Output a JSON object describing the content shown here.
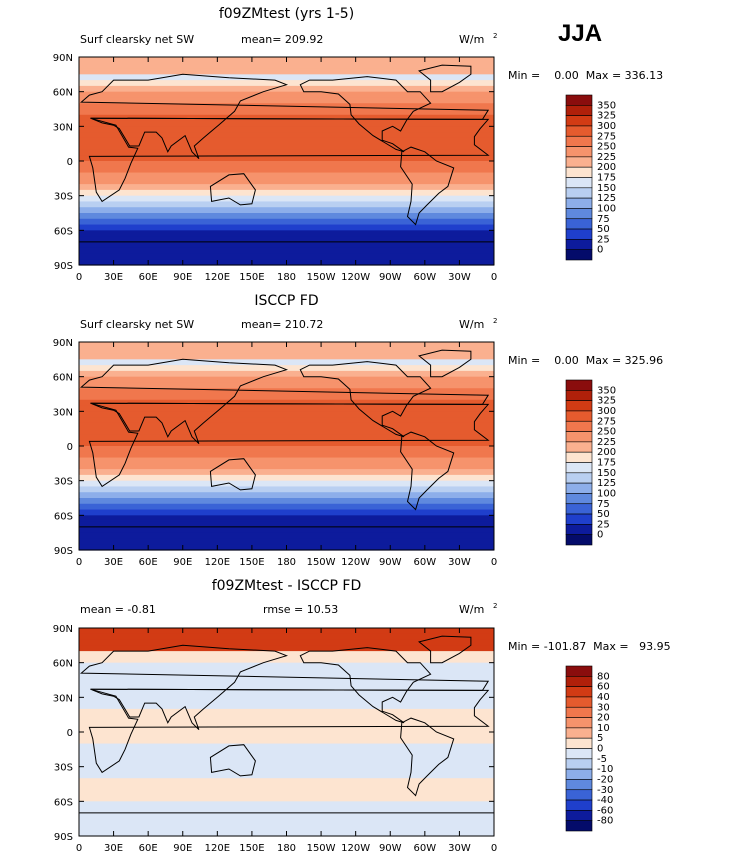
{
  "season": "JJA",
  "chart_data": [
    {
      "type": "heatmap",
      "title": "f09ZMtest (yrs 1-5)",
      "left_label": "Surf clearsky net SW",
      "stat1": "mean= 209.92",
      "stat2": "",
      "units": "W/m",
      "units_exp": "2",
      "minmax": "Min =    0.00  Max = 336.13",
      "min": 0.0,
      "max": 336.13,
      "mean": 209.92,
      "colorbar_levels": [
        "350",
        "325",
        "300",
        "275",
        "250",
        "225",
        "200",
        "175",
        "150",
        "125",
        "100",
        "75",
        "50",
        "25",
        "0"
      ],
      "colorbar_colors": [
        "#8a0d0d",
        "#b0200a",
        "#d23b14",
        "#e55b2e",
        "#f0774d",
        "#f6936c",
        "#fab08f",
        "#fde4d0",
        "#dbe6f6",
        "#b9cff1",
        "#8daeea",
        "#5f89de",
        "#3a63d6",
        "#1f3fcc",
        "#0d1b9c",
        "#040b6a"
      ],
      "xticks": [
        "0",
        "30E",
        "60E",
        "90E",
        "120E",
        "150E",
        "180",
        "150W",
        "120W",
        "90W",
        "60W",
        "30W",
        "0"
      ],
      "yticks": [
        "90N",
        "60N",
        "30N",
        "0",
        "30S",
        "60S",
        "90S"
      ]
    },
    {
      "type": "heatmap",
      "title": "ISCCP FD",
      "left_label": "Surf clearsky net SW",
      "stat1": "mean= 210.72",
      "stat2": "",
      "units": "W/m",
      "units_exp": "2",
      "minmax": "Min =    0.00  Max = 325.96",
      "min": 0.0,
      "max": 325.96,
      "mean": 210.72,
      "colorbar_levels": [
        "350",
        "325",
        "300",
        "275",
        "250",
        "225",
        "200",
        "175",
        "150",
        "125",
        "100",
        "75",
        "50",
        "25",
        "0"
      ],
      "colorbar_colors": [
        "#8a0d0d",
        "#b0200a",
        "#d23b14",
        "#e55b2e",
        "#f0774d",
        "#f6936c",
        "#fab08f",
        "#fde4d0",
        "#dbe6f6",
        "#b9cff1",
        "#8daeea",
        "#5f89de",
        "#3a63d6",
        "#1f3fcc",
        "#0d1b9c",
        "#040b6a"
      ],
      "xticks": [
        "0",
        "30E",
        "60E",
        "90E",
        "120E",
        "150E",
        "180",
        "150W",
        "120W",
        "90W",
        "60W",
        "30W",
        "0"
      ],
      "yticks": [
        "90N",
        "60N",
        "30N",
        "0",
        "30S",
        "60S",
        "90S"
      ]
    },
    {
      "type": "heatmap",
      "title": "f09ZMtest - ISCCP FD",
      "left_label": "mean =   -0.81",
      "stat1": "rmse =   10.53",
      "stat2": "",
      "units": "W/m",
      "units_exp": "2",
      "minmax": "Min = -101.87  Max =   93.95",
      "min": -101.87,
      "max": 93.95,
      "mean": -0.81,
      "rmse": 10.53,
      "colorbar_levels": [
        "80",
        "60",
        "40",
        "30",
        "20",
        "10",
        "5",
        "0",
        "-5",
        "-10",
        "-20",
        "-30",
        "-40",
        "-60",
        "-80"
      ],
      "colorbar_colors": [
        "#8a0d0d",
        "#b0200a",
        "#d23b14",
        "#e55b2e",
        "#f0774d",
        "#f6936c",
        "#fab08f",
        "#fde4d0",
        "#dbe6f6",
        "#b9cff1",
        "#8daeea",
        "#5f89de",
        "#3a63d6",
        "#1f3fcc",
        "#0d1b9c",
        "#040b6a"
      ],
      "xticks": [
        "0",
        "30E",
        "60E",
        "90E",
        "120E",
        "150E",
        "180",
        "150W",
        "120W",
        "90W",
        "60W",
        "30W",
        "0"
      ],
      "yticks": [
        "90N",
        "60N",
        "30N",
        "0",
        "30S",
        "60S",
        "90S"
      ]
    }
  ]
}
